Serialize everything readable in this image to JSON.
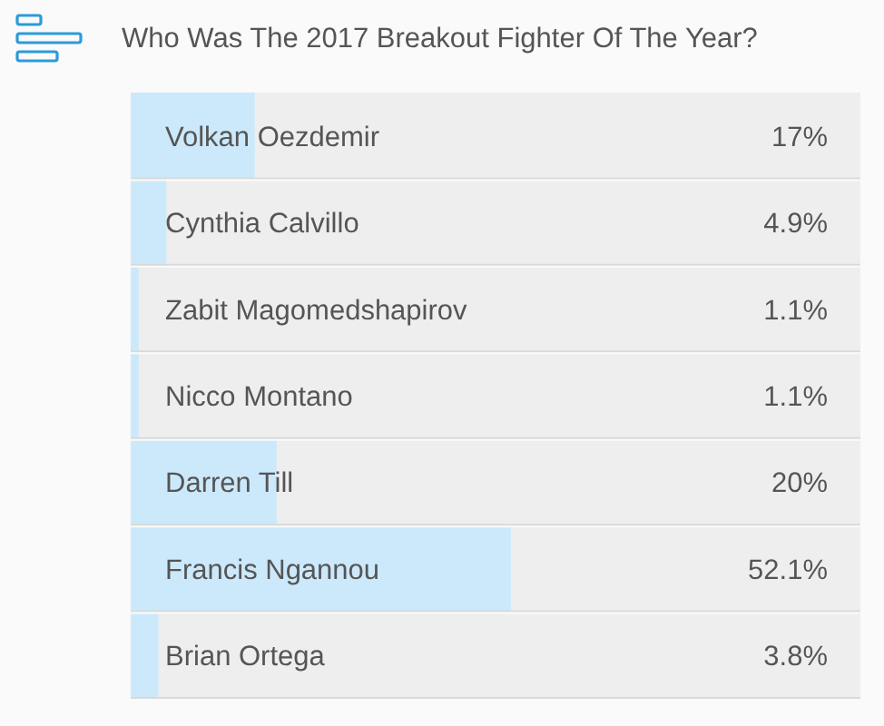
{
  "chart_data": {
    "type": "bar",
    "orientation": "horizontal",
    "title": "Who Was The 2017 Breakout Fighter Of The Year?",
    "categories": [
      "Volkan Oezdemir",
      "Cynthia Calvillo",
      "Zabit Magomedshapirov",
      "Nicco Montano",
      "Darren Till",
      "Francis Ngannou",
      "Brian Ortega"
    ],
    "values": [
      17,
      4.9,
      1.1,
      1.1,
      20,
      52.1,
      3.8
    ],
    "value_labels": [
      "17%",
      "4.9%",
      "1.1%",
      "1.1%",
      "20%",
      "52.1%",
      "3.8%"
    ],
    "color": "#cce9fb",
    "xlim": [
      0,
      100
    ],
    "tick_labels": false
  }
}
